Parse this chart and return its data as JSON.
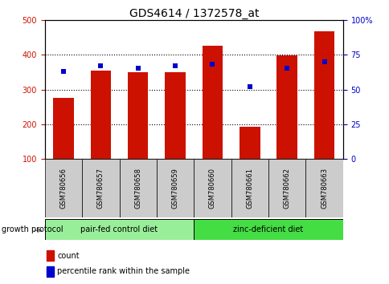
{
  "title": "GDS4614 / 1372578_at",
  "samples": [
    "GSM780656",
    "GSM780657",
    "GSM780658",
    "GSM780659",
    "GSM780660",
    "GSM780661",
    "GSM780662",
    "GSM780663"
  ],
  "counts": [
    275,
    355,
    350,
    350,
    425,
    193,
    397,
    468
  ],
  "percentiles": [
    63,
    67,
    65,
    67,
    68,
    52,
    65,
    70
  ],
  "ylim_left": [
    100,
    500
  ],
  "ylim_right": [
    0,
    100
  ],
  "groups": [
    {
      "label": "pair-fed control diet",
      "start": 0,
      "end": 4,
      "color": "#99ee99"
    },
    {
      "label": "zinc-deficient diet",
      "start": 4,
      "end": 8,
      "color": "#44dd44"
    }
  ],
  "group_label": "growth protocol",
  "bar_color": "#cc1100",
  "dot_color": "#0000cc",
  "bar_width": 0.55,
  "ylabel_left_color": "#cc1100",
  "ylabel_right_color": "#0000cc",
  "legend_count_label": "count",
  "legend_pct_label": "percentile rank within the sample",
  "grid_ticks": [
    200,
    300,
    400
  ],
  "left_yticks": [
    100,
    200,
    300,
    400,
    500
  ],
  "right_yticks": [
    0,
    25,
    50,
    75,
    100
  ],
  "tick_label_bg": "#cccccc",
  "title_fontsize": 10,
  "tick_fontsize": 7,
  "label_fontsize": 6,
  "group_fontsize": 7
}
